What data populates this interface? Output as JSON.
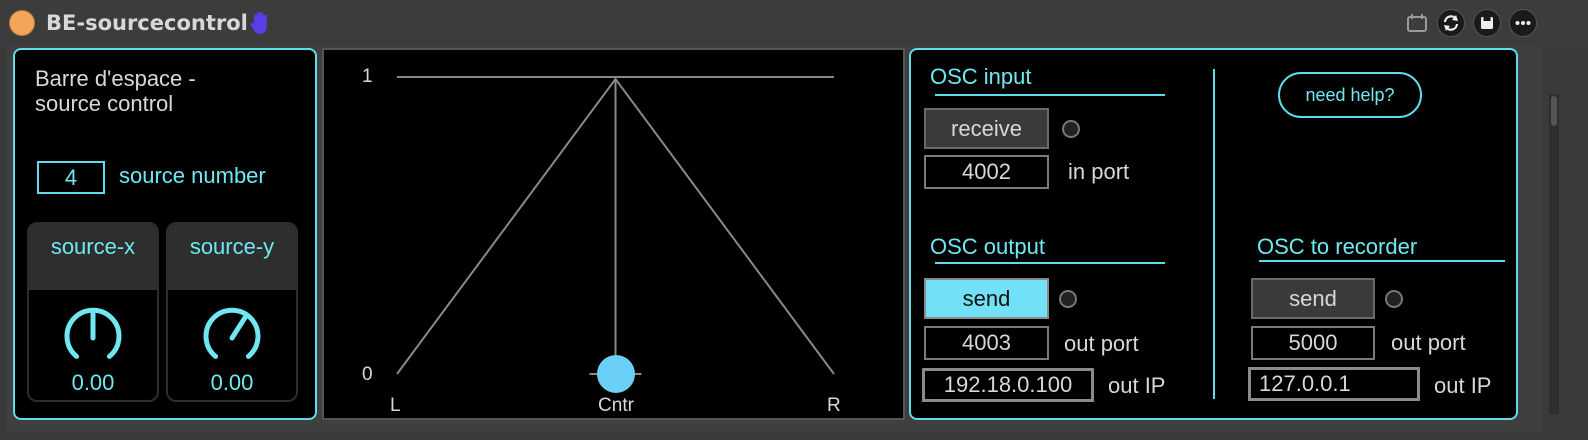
{
  "window": {
    "title": "BE-sourcecontrol"
  },
  "left_panel": {
    "description": "Barre d'espace -\nsource control",
    "source_number": {
      "value": "4",
      "label": "source number"
    },
    "dials": [
      {
        "label": "source-x",
        "value": "0.00",
        "level": 0.5
      },
      {
        "label": "source-y",
        "value": "0.00",
        "level": 0.62
      }
    ]
  },
  "pan_graph": {
    "y_ticks": [
      "1",
      "0"
    ],
    "x_labels": [
      "L",
      "Cntr",
      "R"
    ],
    "handle_position": 0.5
  },
  "osc_input": {
    "header": "OSC input",
    "receive_label": "receive",
    "port_value": "4002",
    "port_label": "in port"
  },
  "osc_output": {
    "header": "OSC output",
    "send_label": "send",
    "port_value": "4003",
    "port_label": "out port",
    "ip_value": "192.18.0.100",
    "ip_label": "out IP"
  },
  "osc_recorder": {
    "header": "OSC to recorder",
    "send_label": "send",
    "port_value": "5000",
    "port_label": "out port",
    "ip_value": "127.0.0.1",
    "ip_label": "out IP"
  },
  "help": {
    "label": "need help?"
  },
  "colors": {
    "accent": "#6fe8f2",
    "active_button": "#72e0f6",
    "handle": "#6bd0f7"
  }
}
